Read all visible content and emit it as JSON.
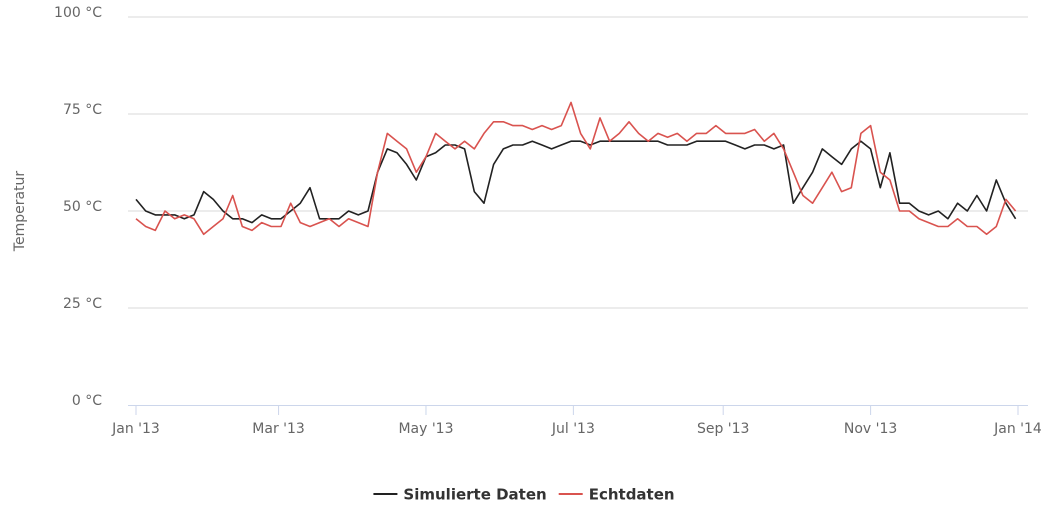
{
  "chart_data": {
    "type": "line",
    "y_label": "Temperatur",
    "x": [
      0,
      4,
      8,
      12,
      16,
      20,
      24,
      28,
      32,
      36,
      40,
      44,
      48,
      52,
      56,
      60,
      64,
      68,
      72,
      76,
      80,
      84,
      88,
      92,
      96,
      100,
      104,
      108,
      112,
      116,
      120,
      124,
      128,
      132,
      136,
      140,
      144,
      148,
      152,
      156,
      160,
      164,
      168,
      172,
      176,
      180,
      184,
      188,
      192,
      196,
      200,
      204,
      208,
      212,
      216,
      220,
      224,
      228,
      232,
      236,
      240,
      244,
      248,
      252,
      256,
      260,
      264,
      268,
      272,
      276,
      280,
      284,
      288,
      292,
      296,
      300,
      304,
      308,
      312,
      316,
      320,
      324,
      328,
      332,
      336,
      340,
      344,
      348,
      352,
      356,
      360,
      364
    ],
    "series": [
      {
        "name": "Simulierte Daten",
        "color": "#222222",
        "values": [
          53,
          50,
          49,
          49,
          49,
          48,
          49,
          55,
          53,
          50,
          48,
          48,
          47,
          49,
          48,
          48,
          50,
          52,
          56,
          48,
          48,
          48,
          50,
          49,
          50,
          60,
          66,
          65,
          62,
          58,
          64,
          65,
          67,
          67,
          66,
          55,
          52,
          62,
          66,
          67,
          67,
          68,
          67,
          66,
          67,
          68,
          68,
          67,
          68,
          68,
          68,
          68,
          68,
          68,
          68,
          67,
          67,
          67,
          68,
          68,
          68,
          68,
          67,
          66,
          67,
          67,
          66,
          67,
          52,
          56,
          60,
          66,
          64,
          62,
          66,
          68,
          66,
          56,
          65,
          52,
          52,
          50,
          49,
          50,
          48,
          52,
          50,
          54,
          50,
          58,
          52,
          48
        ]
      },
      {
        "name": "Echtdaten",
        "color": "#d9534f",
        "values": [
          48,
          46,
          45,
          50,
          48,
          49,
          48,
          44,
          46,
          48,
          54,
          46,
          45,
          47,
          46,
          46,
          52,
          47,
          46,
          47,
          48,
          46,
          48,
          47,
          46,
          60,
          70,
          68,
          66,
          60,
          64,
          70,
          68,
          66,
          68,
          66,
          70,
          73,
          73,
          72,
          72,
          71,
          72,
          71,
          72,
          78,
          70,
          66,
          74,
          68,
          70,
          73,
          70,
          68,
          70,
          69,
          70,
          68,
          70,
          70,
          72,
          70,
          70,
          70,
          71,
          68,
          70,
          66,
          60,
          54,
          52,
          56,
          60,
          55,
          56,
          70,
          72,
          60,
          58,
          50,
          50,
          48,
          47,
          46,
          46,
          48,
          46,
          46,
          44,
          46,
          53,
          50
        ]
      }
    ],
    "xlim": [
      0,
      365
    ],
    "xticks": [
      {
        "value": 0,
        "label": "Jan '13"
      },
      {
        "value": 59,
        "label": "Mar '13"
      },
      {
        "value": 120,
        "label": "May '13"
      },
      {
        "value": 181,
        "label": "Jul '13"
      },
      {
        "value": 243,
        "label": "Sep '13"
      },
      {
        "value": 304,
        "label": "Nov '13"
      },
      {
        "value": 365,
        "label": "Jan '14"
      }
    ],
    "ylim": [
      0,
      100
    ],
    "yticks": [
      {
        "value": 0,
        "label": "0 °C"
      },
      {
        "value": 25,
        "label": "25 °C"
      },
      {
        "value": 50,
        "label": "50 °C"
      },
      {
        "value": 75,
        "label": "75 °C"
      },
      {
        "value": 100,
        "label": "100 °C"
      }
    ],
    "grid": true,
    "legend": "bottom"
  }
}
